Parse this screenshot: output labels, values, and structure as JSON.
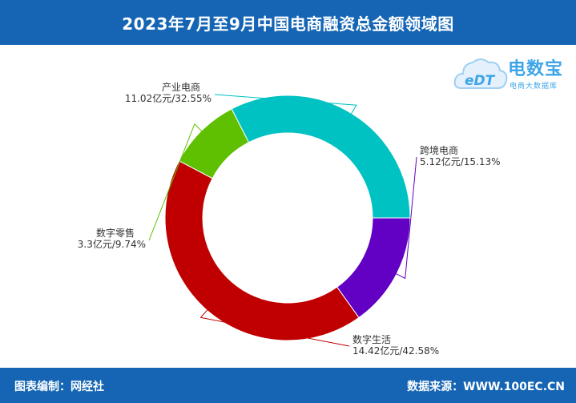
{
  "header": {
    "title": "2023年7月至9月中国电商融资总金额领域图"
  },
  "footer": {
    "editor_label": "图表编制：",
    "editor_value": "网经社",
    "source_label": "数据来源：",
    "source_value": "WWW.100EC.CN"
  },
  "logo": {
    "main": "电数宝",
    "sub": "电商大数据库",
    "badge": "eDT"
  },
  "chart_data": {
    "type": "pie",
    "variant": "donut",
    "unit": "亿元",
    "slices": [
      {
        "name": "跨境电商",
        "value": 5.12,
        "percent": "15.13%",
        "label": "5.12亿元/15.13%",
        "color": "#6200c4"
      },
      {
        "name": "数字生活",
        "value": 14.42,
        "percent": "42.58%",
        "label": "14.42亿元/42.58%",
        "color": "#c00000"
      },
      {
        "name": "数字零售",
        "value": 3.3,
        "percent": "9.74%",
        "label": "3.3亿元/9.74%",
        "color": "#5ec000"
      },
      {
        "name": "产业电商",
        "value": 11.02,
        "percent": "32.55%",
        "label": "11.02亿元/32.55%",
        "color": "#00c2c2"
      }
    ],
    "start_angle": "3 o'clock",
    "direction": "clockwise",
    "legend": "none"
  }
}
